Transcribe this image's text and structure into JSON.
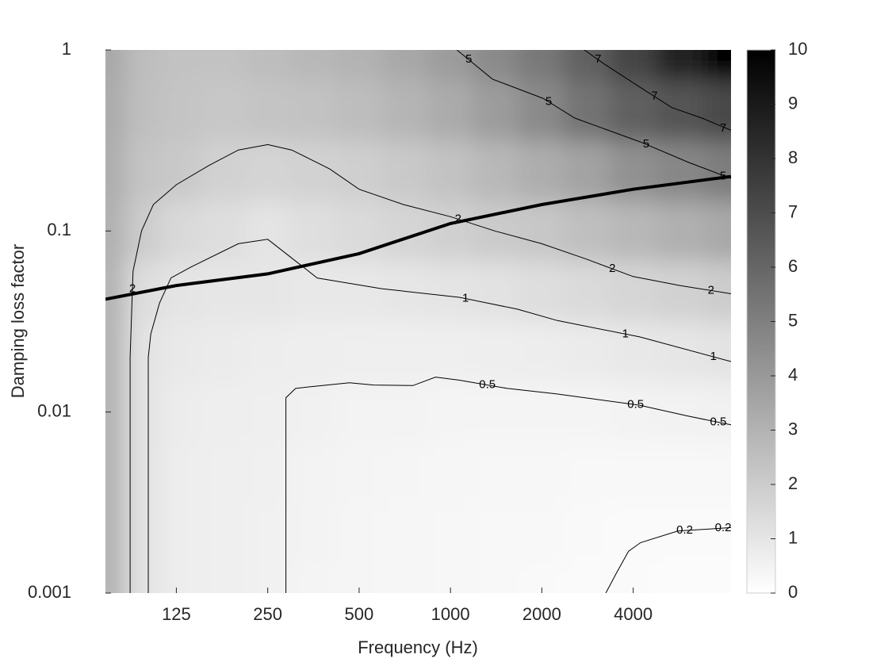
{
  "chart_data": {
    "type": "contour",
    "xlabel": "Frequency (Hz)",
    "ylabel": "Damping loss factor",
    "xscale": "log",
    "yscale": "log",
    "xlim": [
      73,
      8400
    ],
    "ylim": [
      0.001,
      1
    ],
    "xticks": [
      125,
      250,
      500,
      1000,
      2000,
      4000
    ],
    "yticks": [
      0.001,
      0.01,
      0.1,
      1
    ],
    "colormap": "gray",
    "clim": [
      0,
      10
    ],
    "cticks": [
      0,
      1,
      2,
      3,
      4,
      5,
      6,
      7,
      8,
      9,
      10
    ],
    "grid_x": [
      73,
      100,
      125,
      180,
      250,
      350,
      500,
      710,
      1000,
      1400,
      2000,
      2800,
      4000,
      5700,
      8400
    ],
    "grid_y": [
      0.001,
      0.00215,
      0.00464,
      0.01,
      0.0215,
      0.0464,
      0.1,
      0.215,
      0.464,
      1
    ],
    "z": [
      [
        3.0,
        1.1,
        0.7,
        0.62,
        0.55,
        0.45,
        0.4,
        0.35,
        0.3,
        0.27,
        0.24,
        0.21,
        0.19,
        0.17,
        0.16
      ],
      [
        3.0,
        1.1,
        0.7,
        0.62,
        0.56,
        0.46,
        0.41,
        0.36,
        0.32,
        0.29,
        0.26,
        0.23,
        0.21,
        0.2,
        0.2
      ],
      [
        3.0,
        1.1,
        0.72,
        0.64,
        0.58,
        0.48,
        0.43,
        0.39,
        0.35,
        0.33,
        0.31,
        0.29,
        0.28,
        0.27,
        0.27
      ],
      [
        3.0,
        1.1,
        0.75,
        0.68,
        0.62,
        0.54,
        0.49,
        0.46,
        0.43,
        0.43,
        0.43,
        0.45,
        0.48,
        0.52,
        0.56
      ],
      [
        3.0,
        1.1,
        0.85,
        0.78,
        0.72,
        0.65,
        0.62,
        0.62,
        0.63,
        0.67,
        0.72,
        0.8,
        0.92,
        1.0,
        1.1
      ],
      [
        3.0,
        1.3,
        1.05,
        1.0,
        0.98,
        0.92,
        0.92,
        0.97,
        1.05,
        1.15,
        1.3,
        1.45,
        1.6,
        1.8,
        2.0
      ],
      [
        3.1,
        2.0,
        1.5,
        1.3,
        1.05,
        1.25,
        1.45,
        1.65,
        1.85,
        2.05,
        2.2,
        2.5,
        2.8,
        3.1,
        3.4
      ],
      [
        3.2,
        2.3,
        2.1,
        1.8,
        1.7,
        1.75,
        1.9,
        2.1,
        2.4,
        2.8,
        3.2,
        3.6,
        4.3,
        4.7,
        5.1
      ],
      [
        3.3,
        2.5,
        2.3,
        2.2,
        2.3,
        2.4,
        2.6,
        2.9,
        3.3,
        3.9,
        4.6,
        5.5,
        6.2,
        6.7,
        7.1
      ],
      [
        3.4,
        2.6,
        2.4,
        2.4,
        2.6,
        2.8,
        3.0,
        3.4,
        3.9,
        4.6,
        5.3,
        6.2,
        7.3,
        8.6,
        10
      ]
    ],
    "contours": [
      {
        "level": 2,
        "x": [
          88,
          88,
          90,
          96,
          105,
          125,
          160,
          200,
          250,
          300,
          400,
          500,
          700,
          1000,
          1400,
          2000,
          2800,
          4000,
          5700,
          8400
        ],
        "y": [
          0.001,
          0.02,
          0.06,
          0.1,
          0.14,
          0.18,
          0.23,
          0.28,
          0.3,
          0.28,
          0.22,
          0.17,
          0.14,
          0.12,
          0.1,
          0.085,
          0.07,
          0.056,
          0.05,
          0.045
        ]
      },
      {
        "level": 1,
        "x": [
          101,
          101,
          101,
          103,
          110,
          120,
          139,
          200,
          250,
          364,
          593,
          1070,
          1660,
          2250,
          4200,
          8400
        ],
        "y": [
          0.001,
          0.01,
          0.02,
          0.027,
          0.04,
          0.055,
          0.063,
          0.085,
          0.09,
          0.055,
          0.048,
          0.043,
          0.037,
          0.032,
          0.026,
          0.019
        ]
      },
      {
        "level": 0.5,
        "x": [
          287,
          287,
          309,
          334,
          465,
          557,
          752,
          893,
          1070,
          1540,
          2230,
          4200,
          6060,
          8400
        ],
        "y": [
          0.001,
          0.012,
          0.0135,
          0.0137,
          0.0145,
          0.0141,
          0.014,
          0.0156,
          0.015,
          0.0135,
          0.0126,
          0.0109,
          0.0095,
          0.0085
        ]
      },
      {
        "level": 0.2,
        "x": [
          3250,
          3530,
          3860,
          4230,
          5610,
          8400
        ],
        "y": [
          0.001,
          0.0013,
          0.0017,
          0.0019,
          0.0022,
          0.0023
        ]
      },
      {
        "level": 5,
        "x": [
          1050,
          1375,
          2020,
          2570,
          4230,
          6060,
          8400
        ],
        "y": [
          1,
          0.69,
          0.54,
          0.42,
          0.31,
          0.24,
          0.195
        ]
      },
      {
        "level": 7,
        "x": [
          2760,
          3200,
          4230,
          5370,
          6750,
          8400
        ],
        "y": [
          1,
          0.84,
          0.62,
          0.48,
          0.42,
          0.36
        ]
      }
    ],
    "curve": {
      "x": [
        73,
        125,
        250,
        500,
        1000,
        2000,
        4000,
        8400
      ],
      "y": [
        0.042,
        0.05,
        0.058,
        0.075,
        0.11,
        0.14,
        0.17,
        0.2
      ]
    }
  }
}
